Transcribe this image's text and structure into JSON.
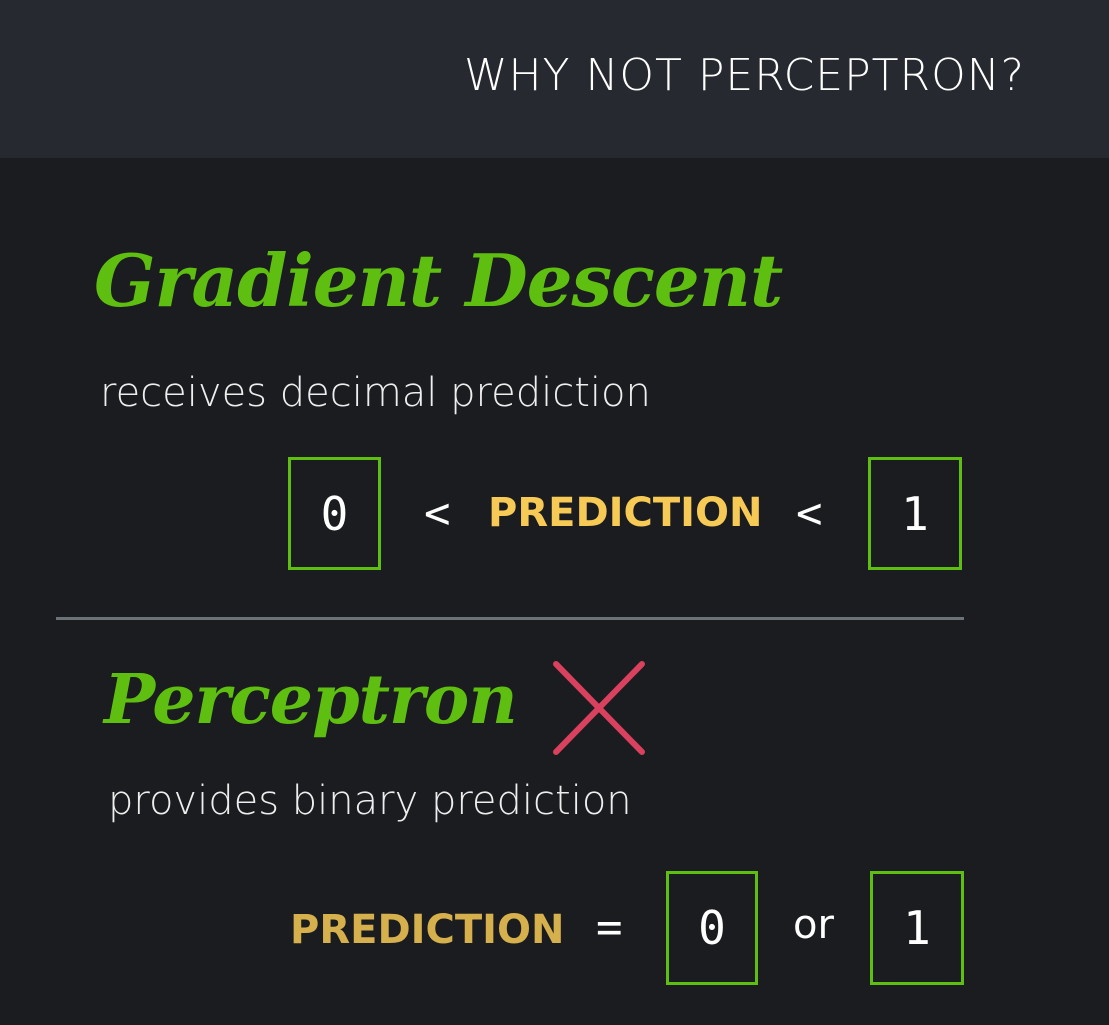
{
  "header": {
    "title": "WHY NOT PERCEPTRON?"
  },
  "gradient_descent": {
    "title": "Gradient Descent",
    "subtitle": "receives decimal prediction",
    "lower_value": "0",
    "comparator_1": "<",
    "label": "PREDICTION",
    "comparator_2": "<",
    "upper_value": "1"
  },
  "perceptron": {
    "title": "Perceptron",
    "status_icon": "cross-icon",
    "subtitle": "provides binary prediction",
    "label": "PREDICTION",
    "equals": "=",
    "value_a": "0",
    "or": "or",
    "value_b": "1"
  },
  "colors": {
    "accent_green": "#5fbf10",
    "prediction_yellow": "#f7ca55",
    "cross_red": "#d9415f",
    "header_bg": "#262a30",
    "body_bg": "#1b1c1f"
  }
}
